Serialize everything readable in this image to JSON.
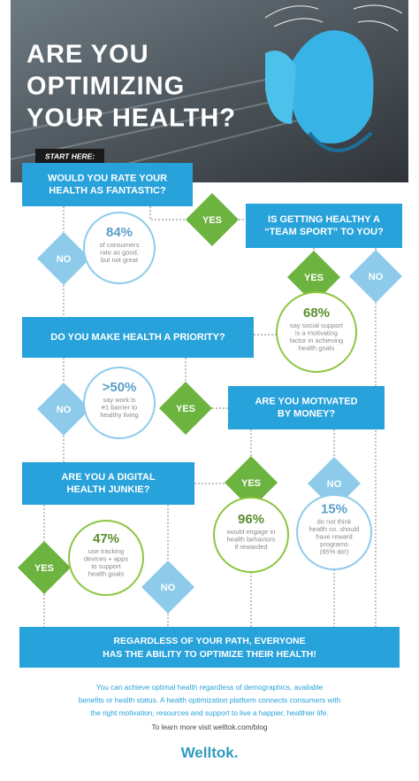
{
  "header": {
    "title": [
      "ARE YOU",
      "OPTIMIZING",
      "YOUR HEALTH?"
    ],
    "start_label": "START HERE:"
  },
  "questions": [
    {
      "lines": [
        "WOULD YOU RATE YOUR",
        "HEALTH AS FANTASTIC?"
      ]
    },
    {
      "lines": [
        "IS GETTING HEALTHY A",
        "“TEAM SPORT” TO YOU?"
      ]
    },
    {
      "lines": [
        "DO YOU MAKE HEALTH A PRIORITY?"
      ]
    },
    {
      "lines": [
        "ARE YOU MOTIVATED",
        "BY MONEY?"
      ]
    },
    {
      "lines": [
        "ARE YOU A DIGITAL",
        "HEALTH JUNKIE?"
      ]
    }
  ],
  "answers": [
    {
      "label": "YES"
    },
    {
      "label": "NO"
    },
    {
      "label": "YES"
    },
    {
      "label": "NO"
    },
    {
      "label": "NO"
    },
    {
      "label": "YES"
    },
    {
      "label": "YES"
    },
    {
      "label": "NO"
    },
    {
      "label": "YES"
    },
    {
      "label": "NO"
    }
  ],
  "stats": [
    {
      "value": "84%",
      "lines": [
        "of consumers",
        "rate as good,",
        "but not great"
      ]
    },
    {
      "value": "68%",
      "lines": [
        "say social support",
        "is a motivating",
        "factor in achieving",
        "health goals"
      ]
    },
    {
      "value": ">50%",
      "lines": [
        "say work is",
        "#1 barrier to",
        "healthy living"
      ]
    },
    {
      "value": "96%",
      "lines": [
        "would engage in",
        "health behaviors",
        "if rewarded"
      ]
    },
    {
      "value": "15%",
      "lines": [
        "do not think",
        "health co. should",
        "have reward",
        "programs",
        "(85% do!)"
      ]
    },
    {
      "value": "47%",
      "lines": [
        "use tracking",
        "devices + apps",
        "to support",
        "health goals"
      ]
    }
  ],
  "conclusion": [
    "REGARDLESS OF YOUR PATH, EVERYONE",
    "HAS THE ABILITY TO OPTIMIZE THEIR HEALTH!"
  ],
  "footer": {
    "paragraph": [
      "You can achieve optimal health regardless of demographics, available",
      "benefits or health status. A health optimization platform connects consumers with",
      "the right motivation, resources and support to live a happier, healthier life."
    ],
    "link": "To learn more visit welltok.com/blog",
    "logo": "Welltok."
  }
}
